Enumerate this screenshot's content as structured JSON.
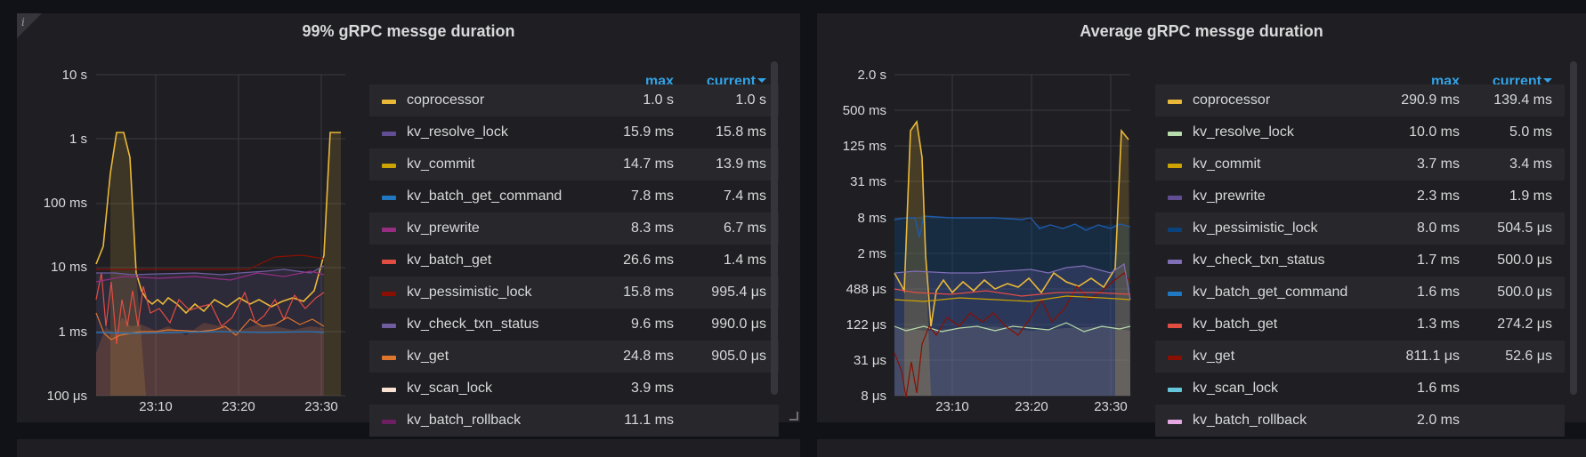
{
  "panels": [
    {
      "title": "99% gRPC messge duration",
      "info_icon": "i",
      "y_ticks": [
        "10 s",
        "1 s",
        "100 ms",
        "10 ms",
        "1 ms",
        "100 μs"
      ],
      "x_ticks": [
        "23:10",
        "23:20",
        "23:30"
      ],
      "legend_headers": {
        "max": "max",
        "current": "current"
      },
      "legend": [
        {
          "name": "coprocessor",
          "color": "#eab839",
          "max": "1.0 s",
          "current": "1.0 s"
        },
        {
          "name": "kv_resolve_lock",
          "color": "#614d93",
          "max": "15.9 ms",
          "current": "15.8 ms"
        },
        {
          "name": "kv_commit",
          "color": "#cca300",
          "max": "14.7 ms",
          "current": "13.9 ms"
        },
        {
          "name": "kv_batch_get_command",
          "color": "#1f78c1",
          "max": "7.8 ms",
          "current": "7.4 ms"
        },
        {
          "name": "kv_prewrite",
          "color": "#962d82",
          "max": "8.3 ms",
          "current": "6.7 ms"
        },
        {
          "name": "kv_batch_get",
          "color": "#e24d42",
          "max": "26.6 ms",
          "current": "1.4 ms"
        },
        {
          "name": "kv_pessimistic_lock",
          "color": "#890f02",
          "max": "15.8 ms",
          "current": "995.4 μs"
        },
        {
          "name": "kv_check_txn_status",
          "color": "#705da0",
          "max": "9.6 ms",
          "current": "990.0 μs"
        },
        {
          "name": "kv_get",
          "color": "#e0752d",
          "max": "24.8 ms",
          "current": "905.0 μs"
        },
        {
          "name": "kv_scan_lock",
          "color": "#f9e2d2",
          "max": "3.9 ms",
          "current": ""
        },
        {
          "name": "kv_batch_rollback",
          "color": "#6d1f62",
          "max": "11.1 ms",
          "current": ""
        }
      ]
    },
    {
      "title": "Average gRPC messge duration",
      "y_ticks": [
        "2.0 s",
        "500 ms",
        "125 ms",
        "31 ms",
        "8 ms",
        "2 ms",
        "488 μs",
        "122 μs",
        "31 μs",
        "8 μs"
      ],
      "x_ticks": [
        "23:10",
        "23:20",
        "23:30"
      ],
      "legend_headers": {
        "max": "max",
        "current": "current"
      },
      "legend": [
        {
          "name": "coprocessor",
          "color": "#eab839",
          "max": "290.9 ms",
          "current": "139.4 ms"
        },
        {
          "name": "kv_resolve_lock",
          "color": "#b7dbab",
          "max": "10.0 ms",
          "current": "5.0 ms"
        },
        {
          "name": "kv_commit",
          "color": "#cca300",
          "max": "3.7 ms",
          "current": "3.4 ms"
        },
        {
          "name": "kv_prewrite",
          "color": "#614d93",
          "max": "2.3 ms",
          "current": "1.9 ms"
        },
        {
          "name": "kv_pessimistic_lock",
          "color": "#0a437c",
          "max": "8.0 ms",
          "current": "504.5 μs"
        },
        {
          "name": "kv_check_txn_status",
          "color": "#806eb7",
          "max": "1.7 ms",
          "current": "500.0 μs"
        },
        {
          "name": "kv_batch_get_command",
          "color": "#1f78c1",
          "max": "1.6 ms",
          "current": "500.0 μs"
        },
        {
          "name": "kv_batch_get",
          "color": "#e24d42",
          "max": "1.3 ms",
          "current": "274.2 μs"
        },
        {
          "name": "kv_get",
          "color": "#890f02",
          "max": "811.1 μs",
          "current": "52.6 μs"
        },
        {
          "name": "kv_scan_lock",
          "color": "#65c5db",
          "max": "1.6 ms",
          "current": ""
        },
        {
          "name": "kv_batch_rollback",
          "color": "#e5a8e2",
          "max": "2.0 ms",
          "current": ""
        }
      ]
    }
  ]
}
